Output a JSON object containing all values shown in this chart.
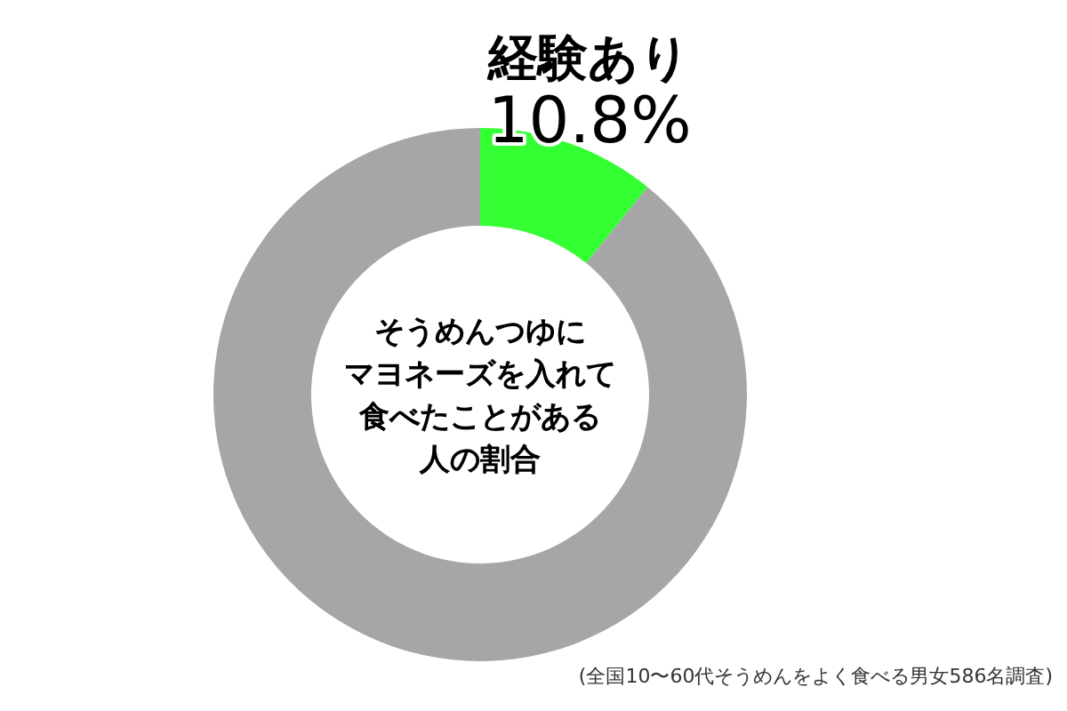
{
  "chart_data": {
    "type": "donut",
    "title": "そうめんつゆにマヨネーズを入れて食べたことがある人の割合",
    "categories": [
      "経験あり",
      null
    ],
    "values": [
      10.8,
      89.2
    ],
    "colors": [
      "#33ff33",
      "#a6a6a6"
    ],
    "value_labels": [
      "10.8%",
      null
    ],
    "annotations": [
      "(全国10〜60代そうめんをよく食べる男女586名調査)"
    ]
  }
}
